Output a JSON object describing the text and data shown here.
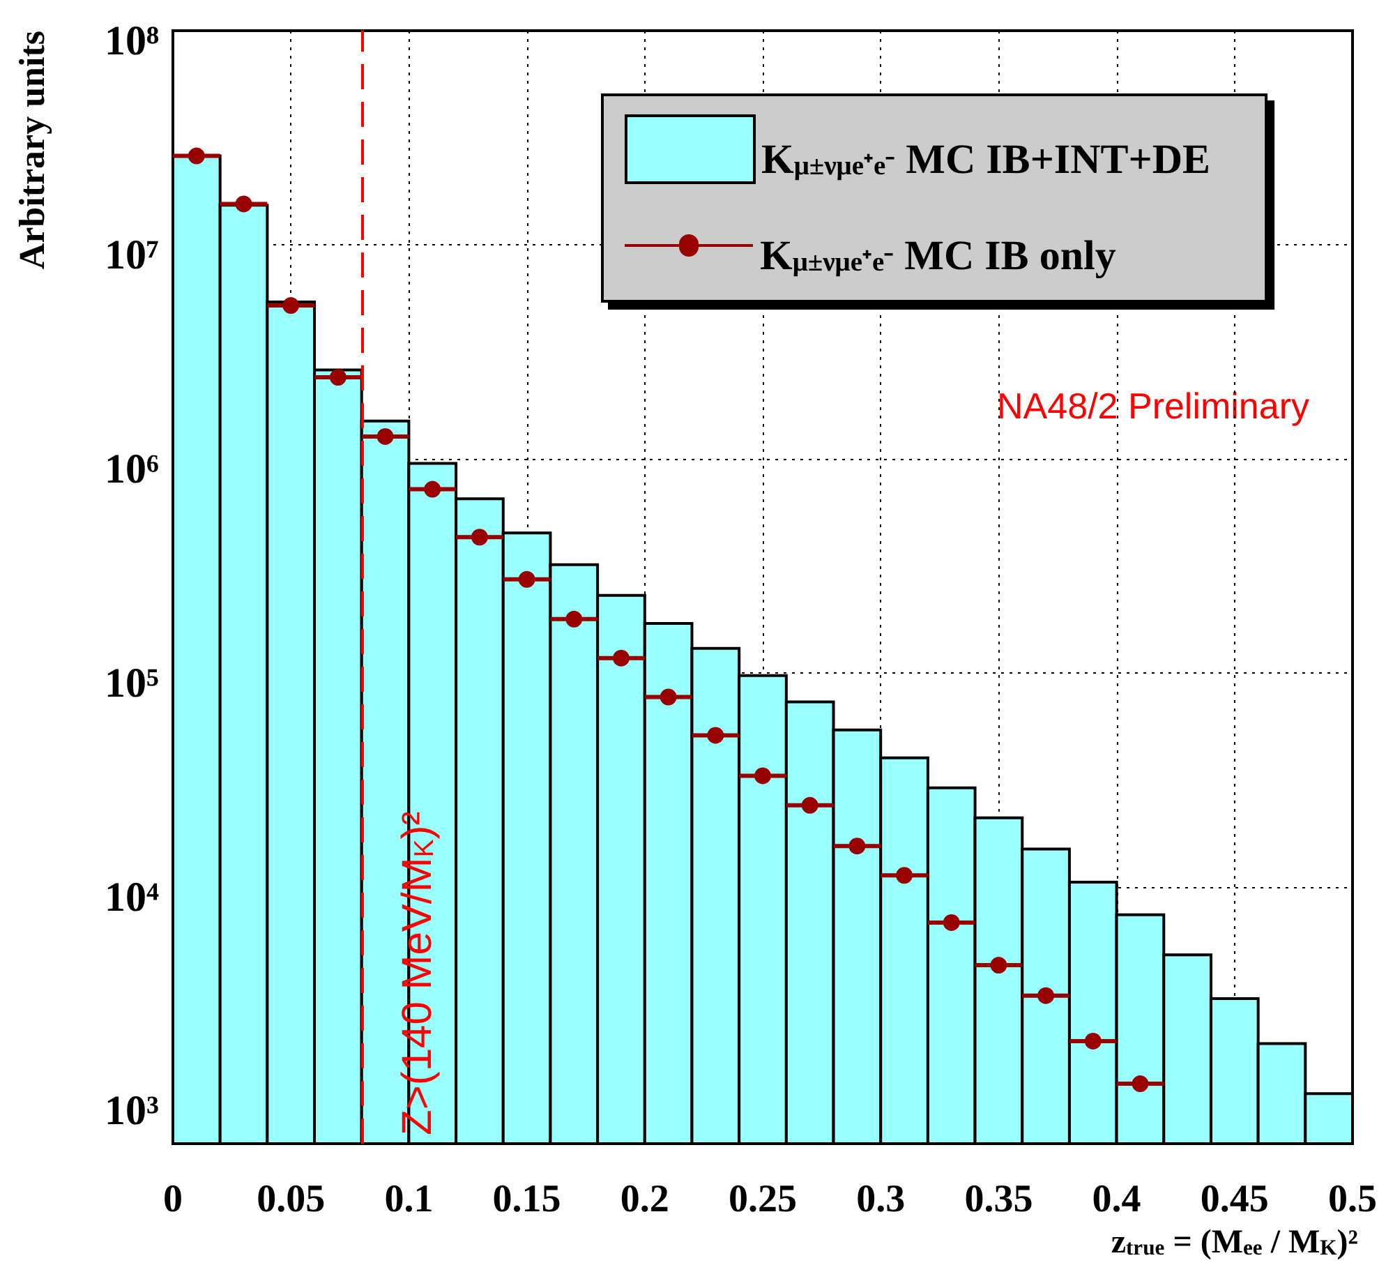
{
  "chart_data": {
    "type": "histogram",
    "xlabel": "z$_{true}$ = (M$_{ee}$ / M$_{K}$)²",
    "ylabel": "Arbitrary units",
    "bins": [
      0,
      0.02,
      0.04,
      0.06,
      0.08,
      0.1,
      0.12,
      0.14,
      0.16,
      0.18,
      0.2,
      0.22,
      0.24,
      0.26,
      0.28,
      0.3,
      0.32,
      0.34,
      0.36,
      0.38,
      0.4,
      0.42,
      0.44,
      0.46,
      0.48,
      0.5
    ],
    "series": [
      {
        "name": "K$_{μ±νμe⁺e⁻}$ MC IB+INT+DE",
        "color": "#99ffff",
        "values": [
          26000000,
          15300000,
          5400000,
          2600000,
          1500000,
          950000,
          650000,
          450000,
          320000,
          230000,
          170000,
          130000,
          97000,
          73000,
          54000,
          40000,
          29000,
          21000,
          15000,
          10500,
          7400,
          4800,
          3000,
          1850,
          1080
        ]
      },
      {
        "name": "K$_{μ±νμe⁺e⁻}$ MC IB only",
        "type": "scatter",
        "color": "#990000",
        "x": [
          0.01,
          0.03,
          0.05,
          0.07,
          0.09,
          0.11,
          0.13,
          0.15,
          0.17,
          0.19,
          0.21,
          0.23,
          0.25,
          0.27,
          0.29,
          0.31,
          0.33,
          0.35,
          0.37,
          0.39,
          0.41
        ],
        "values": [
          26000000,
          15500000,
          5200000,
          2400000,
          1270000,
          720000,
          430000,
          273000,
          178000,
          117000,
          77000,
          51000,
          33000,
          24000,
          15500,
          11300,
          6800,
          4300,
          3100,
          1900,
          1200
        ],
        "xerrors": [
          0.01,
          0.01,
          0.01,
          0.01,
          0.01,
          0.01,
          0.01,
          0.01,
          0.01,
          0.01,
          0.01,
          0.01,
          0.01,
          0.01,
          0.01,
          0.01,
          0.01,
          0.01,
          0.01,
          0.01,
          0.01
        ]
      }
    ],
    "xlim": [
      0,
      0.5
    ],
    "xticks": [
      0,
      0.05,
      0.1,
      0.15,
      0.2,
      0.25,
      0.3,
      0.35,
      0.4,
      0.45,
      0.5
    ],
    "ylim": [
      630,
      100000000
    ],
    "yticks": [
      {
        "value": 1000,
        "label": "10³"
      },
      {
        "value": 10000,
        "label": "10⁴"
      },
      {
        "value": 100000,
        "label": "10⁵"
      },
      {
        "value": 1000000,
        "label": "10⁶"
      },
      {
        "value": 10000000,
        "label": "10⁷"
      },
      {
        "value": 100000000,
        "label": "10⁸"
      }
    ],
    "log": "y",
    "grid": true,
    "legend": "top right",
    "marker": "circle",
    "ref_lines": [
      {
        "axis": "x",
        "value": 0.08,
        "label": "Z>(140 MeV/M$_{K}$)²",
        "color": "#ff0000",
        "line_style": "dashed"
      }
    ],
    "annotations": [
      "NA48/2 Preliminary"
    ]
  }
}
